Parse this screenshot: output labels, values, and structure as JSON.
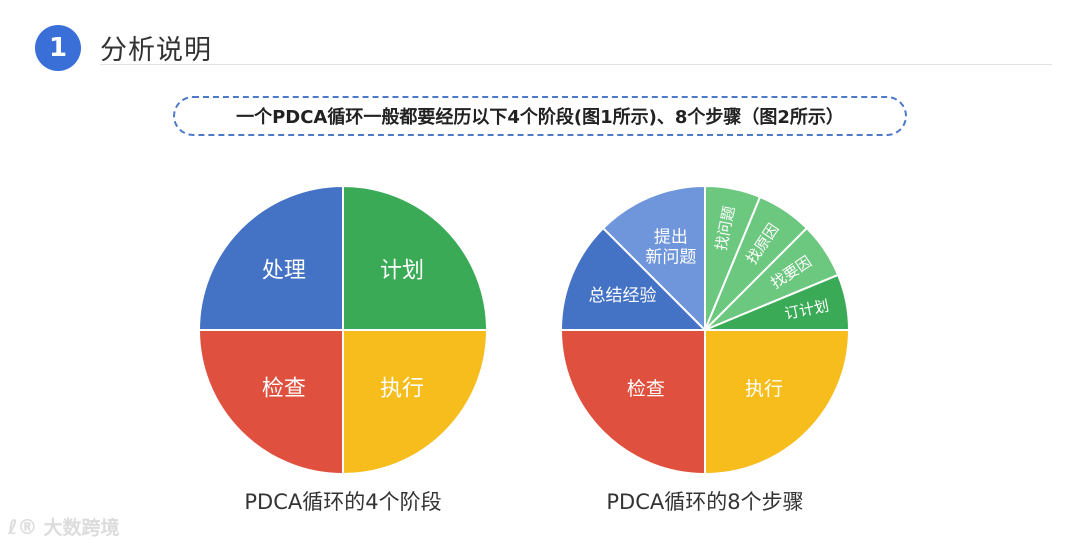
{
  "header": {
    "number": "1",
    "title": "分析说明"
  },
  "intro": "一个PDCA循环一般都要经历以下4个阶段(图1所示)、8个步骤（图2所示）",
  "watermark": {
    "logo": "ℓ®",
    "text": "大数跨境"
  },
  "colors": {
    "blue": "#4472c4",
    "green": "#3aaa56",
    "red": "#e0503f",
    "yellow": "#f6bd1d",
    "light_blue": "#6f95db",
    "light_green": "#6cc77f"
  },
  "chart_data": [
    {
      "type": "pie",
      "caption": "PDCA循环的4个阶段",
      "slices": [
        {
          "label": "计划",
          "value": 25,
          "color": "#3aaa56"
        },
        {
          "label": "执行",
          "value": 25,
          "color": "#f6bd1d"
        },
        {
          "label": "检查",
          "value": 25,
          "color": "#e0503f"
        },
        {
          "label": "处理",
          "value": 25,
          "color": "#4472c4"
        }
      ]
    },
    {
      "type": "pie",
      "caption": "PDCA循环的8个步骤",
      "slices": [
        {
          "label": "找问题",
          "value": 6.25,
          "color": "#6cc77f"
        },
        {
          "label": "找原因",
          "value": 6.25,
          "color": "#6cc77f"
        },
        {
          "label": "找要因",
          "value": 6.25,
          "color": "#6cc77f"
        },
        {
          "label": "订计划",
          "value": 6.25,
          "color": "#3aaa56"
        },
        {
          "label": "执行",
          "value": 25,
          "color": "#f6bd1d"
        },
        {
          "label": "检查",
          "value": 25,
          "color": "#e0503f"
        },
        {
          "label": "总结经验",
          "value": 12.5,
          "color": "#4472c4"
        },
        {
          "label": "提出新问题",
          "value": 12.5,
          "color": "#6f95db"
        }
      ]
    }
  ]
}
